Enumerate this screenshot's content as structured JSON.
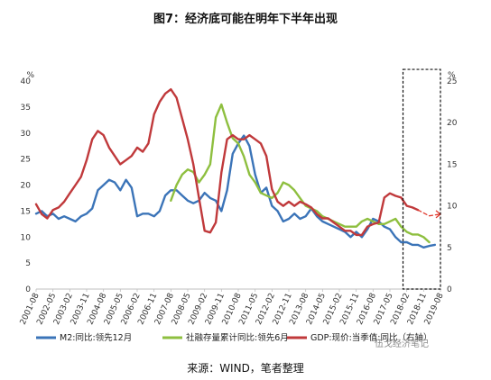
{
  "title": "图7：经济底可能在明年下半年出现",
  "source": "来源：WIND，笔者整理",
  "watermark": "伍戈经济笔记",
  "chart_data": {
    "type": "line",
    "y_left": {
      "label": "%",
      "range": [
        0,
        40
      ],
      "ticks": [
        0,
        5,
        10,
        15,
        20,
        25,
        30,
        35,
        40
      ]
    },
    "y_right": {
      "label": "%",
      "range": [
        0,
        25
      ],
      "ticks": [
        0,
        5,
        10,
        15,
        20,
        25
      ]
    },
    "x_range": [
      "2001-08",
      "2019-08"
    ],
    "x_ticks": [
      "2001-08",
      "2002-05",
      "2003-02",
      "2003-11",
      "2004-08",
      "2005-05",
      "2006-02",
      "2006-11",
      "2007-08",
      "2008-05",
      "2009-02",
      "2009-11",
      "2010-08",
      "2011-05",
      "2012-02",
      "2012-11",
      "2013-08",
      "2014-05",
      "2015-02",
      "2015-11",
      "2016-08",
      "2017-05",
      "2018-02",
      "2018-11",
      "2019-08"
    ],
    "forecast_box": {
      "x_from": "2017-12",
      "x_to": "2019-08",
      "y_from": 0,
      "y_to": 26.4
    },
    "series": [
      {
        "name": "M2:同比:领先12月",
        "axis": "left",
        "color": "#3b74b8",
        "points": [
          [
            "2001-08",
            14.5
          ],
          [
            "2001-11",
            15.0
          ],
          [
            "2002-02",
            14.0
          ],
          [
            "2002-05",
            14.5
          ],
          [
            "2002-08",
            13.5
          ],
          [
            "2002-11",
            14.0
          ],
          [
            "2003-02",
            13.5
          ],
          [
            "2003-05",
            13.0
          ],
          [
            "2003-08",
            14.0
          ],
          [
            "2003-11",
            14.5
          ],
          [
            "2004-02",
            15.5
          ],
          [
            "2004-05",
            19.0
          ],
          [
            "2004-08",
            20.0
          ],
          [
            "2004-11",
            21.0
          ],
          [
            "2005-02",
            20.5
          ],
          [
            "2005-05",
            19.0
          ],
          [
            "2005-08",
            21.0
          ],
          [
            "2005-11",
            19.5
          ],
          [
            "2006-02",
            14.0
          ],
          [
            "2006-05",
            14.5
          ],
          [
            "2006-08",
            14.5
          ],
          [
            "2006-11",
            14.0
          ],
          [
            "2007-02",
            15.0
          ],
          [
            "2007-05",
            18.0
          ],
          [
            "2007-08",
            19.0
          ],
          [
            "2007-11",
            19.0
          ],
          [
            "2008-02",
            18.0
          ],
          [
            "2008-05",
            17.0
          ],
          [
            "2008-08",
            16.5
          ],
          [
            "2008-11",
            17.0
          ],
          [
            "2009-02",
            18.5
          ],
          [
            "2009-05",
            17.5
          ],
          [
            "2009-08",
            17.0
          ],
          [
            "2009-11",
            15.0
          ],
          [
            "2010-02",
            19.0
          ],
          [
            "2010-05",
            26.0
          ],
          [
            "2010-08",
            28.0
          ],
          [
            "2010-11",
            29.5
          ],
          [
            "2011-02",
            27.5
          ],
          [
            "2011-05",
            22.0
          ],
          [
            "2011-08",
            18.5
          ],
          [
            "2011-11",
            19.5
          ],
          [
            "2012-02",
            16.0
          ],
          [
            "2012-05",
            15.0
          ],
          [
            "2012-08",
            13.0
          ],
          [
            "2012-11",
            13.5
          ],
          [
            "2013-02",
            14.5
          ],
          [
            "2013-05",
            13.5
          ],
          [
            "2013-08",
            14.0
          ],
          [
            "2013-11",
            15.5
          ],
          [
            "2014-02",
            14.0
          ],
          [
            "2014-05",
            13.0
          ],
          [
            "2014-08",
            12.5
          ],
          [
            "2014-11",
            12.0
          ],
          [
            "2015-02",
            11.5
          ],
          [
            "2015-05",
            11.0
          ],
          [
            "2015-08",
            10.0
          ],
          [
            "2015-11",
            11.0
          ],
          [
            "2016-02",
            10.0
          ],
          [
            "2016-05",
            11.5
          ],
          [
            "2016-08",
            13.5
          ],
          [
            "2016-11",
            13.0
          ],
          [
            "2017-02",
            12.0
          ],
          [
            "2017-05",
            11.5
          ],
          [
            "2017-08",
            10.0
          ],
          [
            "2017-11",
            9.0
          ],
          [
            "2018-02",
            9.0
          ],
          [
            "2018-05",
            8.5
          ],
          [
            "2018-08",
            8.5
          ],
          [
            "2018-11",
            8.0
          ],
          [
            "2019-02",
            8.3
          ],
          [
            "2019-05",
            8.5
          ]
        ]
      },
      {
        "name": "社融存量累计同比:领先6月",
        "axis": "left",
        "color": "#8ebf3f",
        "points": [
          [
            "2007-08",
            17.0
          ],
          [
            "2007-11",
            20.0
          ],
          [
            "2008-02",
            22.0
          ],
          [
            "2008-05",
            23.0
          ],
          [
            "2008-08",
            22.5
          ],
          [
            "2008-11",
            20.5
          ],
          [
            "2009-02",
            22.0
          ],
          [
            "2009-05",
            24.0
          ],
          [
            "2009-08",
            33.0
          ],
          [
            "2009-11",
            35.5
          ],
          [
            "2010-02",
            32.0
          ],
          [
            "2010-05",
            29.0
          ],
          [
            "2010-08",
            28.0
          ],
          [
            "2010-11",
            25.5
          ],
          [
            "2011-02",
            22.0
          ],
          [
            "2011-05",
            20.5
          ],
          [
            "2011-08",
            18.5
          ],
          [
            "2011-11",
            18.0
          ],
          [
            "2012-02",
            17.5
          ],
          [
            "2012-05",
            18.5
          ],
          [
            "2012-08",
            20.5
          ],
          [
            "2012-11",
            20.0
          ],
          [
            "2013-02",
            19.0
          ],
          [
            "2013-05",
            17.5
          ],
          [
            "2013-08",
            16.0
          ],
          [
            "2013-11",
            15.5
          ],
          [
            "2014-02",
            15.0
          ],
          [
            "2014-05",
            14.0
          ],
          [
            "2014-08",
            13.5
          ],
          [
            "2014-11",
            13.0
          ],
          [
            "2015-02",
            12.5
          ],
          [
            "2015-05",
            12.0
          ],
          [
            "2015-08",
            12.0
          ],
          [
            "2015-11",
            12.0
          ],
          [
            "2016-02",
            13.0
          ],
          [
            "2016-05",
            13.5
          ],
          [
            "2016-08",
            13.0
          ],
          [
            "2016-11",
            12.5
          ],
          [
            "2017-02",
            12.5
          ],
          [
            "2017-05",
            13.0
          ],
          [
            "2017-08",
            13.5
          ],
          [
            "2017-11",
            12.0
          ],
          [
            "2018-02",
            11.0
          ],
          [
            "2018-05",
            10.5
          ],
          [
            "2018-08",
            10.5
          ],
          [
            "2018-11",
            10.0
          ],
          [
            "2019-02",
            9.0
          ]
        ]
      },
      {
        "name": "GDP:现价:当季值:同比（右轴）",
        "axis": "right",
        "color": "#c0393b",
        "points": [
          [
            "2001-08",
            10.2
          ],
          [
            "2001-11",
            9.0
          ],
          [
            "2002-02",
            8.5
          ],
          [
            "2002-05",
            9.5
          ],
          [
            "2002-08",
            9.8
          ],
          [
            "2002-11",
            10.5
          ],
          [
            "2003-02",
            11.5
          ],
          [
            "2003-05",
            12.5
          ],
          [
            "2003-08",
            13.5
          ],
          [
            "2003-11",
            15.5
          ],
          [
            "2004-02",
            18.0
          ],
          [
            "2004-05",
            19.0
          ],
          [
            "2004-08",
            18.5
          ],
          [
            "2004-11",
            17.0
          ],
          [
            "2005-02",
            16.0
          ],
          [
            "2005-05",
            15.0
          ],
          [
            "2005-08",
            15.5
          ],
          [
            "2005-11",
            16.0
          ],
          [
            "2006-02",
            17.0
          ],
          [
            "2006-05",
            16.5
          ],
          [
            "2006-08",
            17.5
          ],
          [
            "2006-11",
            21.0
          ],
          [
            "2007-02",
            22.5
          ],
          [
            "2007-05",
            23.5
          ],
          [
            "2007-08",
            24.0
          ],
          [
            "2007-11",
            23.0
          ],
          [
            "2008-02",
            20.5
          ],
          [
            "2008-05",
            18.0
          ],
          [
            "2008-08",
            15.0
          ],
          [
            "2008-11",
            11.0
          ],
          [
            "2009-02",
            7.0
          ],
          [
            "2009-05",
            6.8
          ],
          [
            "2009-08",
            8.0
          ],
          [
            "2009-11",
            14.0
          ],
          [
            "2010-02",
            18.0
          ],
          [
            "2010-05",
            18.5
          ],
          [
            "2010-08",
            18.0
          ],
          [
            "2010-11",
            18.0
          ],
          [
            "2011-02",
            18.5
          ],
          [
            "2011-05",
            18.0
          ],
          [
            "2011-08",
            17.5
          ],
          [
            "2011-11",
            16.0
          ],
          [
            "2012-02",
            12.0
          ],
          [
            "2012-05",
            10.5
          ],
          [
            "2012-08",
            10.0
          ],
          [
            "2012-11",
            10.5
          ],
          [
            "2013-02",
            10.0
          ],
          [
            "2013-05",
            10.5
          ],
          [
            "2013-08",
            10.2
          ],
          [
            "2013-11",
            9.8
          ],
          [
            "2014-02",
            9.0
          ],
          [
            "2014-05",
            8.5
          ],
          [
            "2014-08",
            8.5
          ],
          [
            "2014-11",
            8.0
          ],
          [
            "2015-02",
            7.5
          ],
          [
            "2015-05",
            7.0
          ],
          [
            "2015-08",
            7.0
          ],
          [
            "2015-11",
            6.5
          ],
          [
            "2016-02",
            6.5
          ],
          [
            "2016-05",
            7.5
          ],
          [
            "2016-08",
            7.8
          ],
          [
            "2016-11",
            8.0
          ],
          [
            "2017-02",
            11.0
          ],
          [
            "2017-05",
            11.5
          ],
          [
            "2017-08",
            11.2
          ],
          [
            "2017-11",
            11.0
          ],
          [
            "2018-02",
            10.0
          ],
          [
            "2018-05",
            9.8
          ],
          [
            "2018-08",
            9.5
          ]
        ]
      },
      {
        "name": "GDP forecast",
        "axis": "right",
        "color": "#e03a2f",
        "dashed": true,
        "points": [
          [
            "2018-08",
            9.5
          ],
          [
            "2019-02",
            8.8
          ],
          [
            "2019-08",
            9.0
          ]
        ]
      }
    ]
  }
}
